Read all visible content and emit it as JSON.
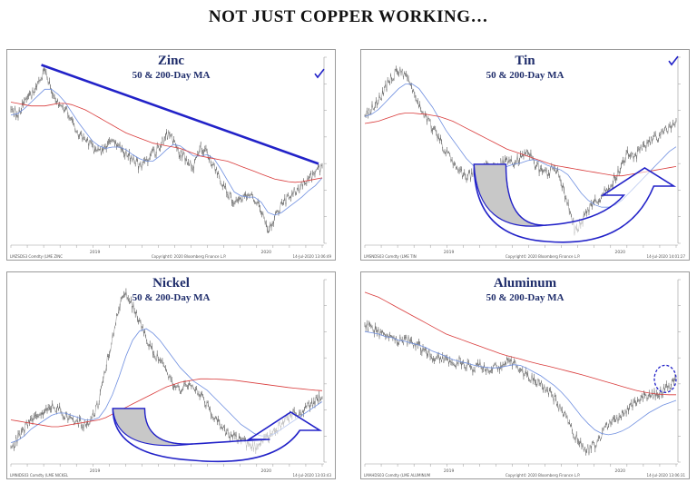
{
  "page": {
    "title": "NOT JUST COPPER WORKING…"
  },
  "colors": {
    "price": "#555555",
    "ma50": "#6f8fe0",
    "ma200": "#d93b3b",
    "annotation": "#2222c8",
    "annotation_fill": "#c8c8c8"
  },
  "charts": [
    {
      "id": "zinc",
      "title": "Zinc",
      "subtitle": "50 & 200-Day MA",
      "footer_left": "LMZSDS3 Comdty (LME ZINC",
      "footer_mid": "Copyright© 2020 Bloomberg Finance L.P.",
      "footer_right": "14-Jul-2020 13:06:49",
      "year_labels": [
        "2019",
        "2020"
      ],
      "annotations": [
        "downtrend-line",
        "checkmark"
      ]
    },
    {
      "id": "tin",
      "title": "Tin",
      "subtitle": "50 & 200-Day MA",
      "footer_left": "LMSNDS03 Comdty (LME TIN",
      "footer_mid": "Copyright© 2020 Bloomberg Finance L.P.",
      "footer_right": "14-Jul-2020 14:01:27",
      "year_labels": [
        "2019",
        "2020"
      ],
      "annotations": [
        "v-recovery-arrow",
        "checkmark"
      ]
    },
    {
      "id": "nickel",
      "title": "Nickel",
      "subtitle": "50 & 200-Day MA",
      "footer_left": "LMNIDS03 Comdty (LME NICKEL",
      "footer_mid": "",
      "footer_right": "14-Jul-2020 13:03:43",
      "year_labels": [
        "2019",
        "2020"
      ],
      "annotations": [
        "v-recovery-arrow"
      ]
    },
    {
      "id": "aluminum",
      "title": "Aluminum",
      "subtitle": "50 & 200-Day MA",
      "footer_left": "LMAHDS03 Comdty (LME ALUMINUM",
      "footer_mid": "Copyright© 2020 Bloomberg Finance L.P.",
      "footer_right": "14-Jul-2020 13:06:31",
      "year_labels": [
        "2019",
        "2020"
      ],
      "annotations": [
        "dashed-circle"
      ]
    }
  ],
  "chart_data": [
    {
      "type": "line",
      "title": "Zinc",
      "subtitle": "50 & 200-Day MA",
      "x_start": "2018-11",
      "x_end": "2020-07",
      "series": [
        {
          "name": "Price",
          "values": [
            2650,
            2600,
            2700,
            2750,
            2850,
            2950,
            2800,
            2700,
            2650,
            2550,
            2450,
            2400,
            2350,
            2300,
            2350,
            2400,
            2350,
            2300,
            2250,
            2200,
            2250,
            2300,
            2350,
            2450,
            2400,
            2300,
            2250,
            2200,
            2350,
            2300,
            2200,
            2100,
            2000,
            1900,
            1950,
            2000,
            1950,
            1850,
            1700,
            1800,
            1900,
            1950,
            2000,
            2050,
            2100,
            2150,
            2200
          ]
        },
        {
          "name": "50-Day MA",
          "values": [
            2600,
            2610,
            2650,
            2700,
            2750,
            2800,
            2800,
            2760,
            2700,
            2620,
            2540,
            2470,
            2400,
            2360,
            2340,
            2350,
            2350,
            2330,
            2290,
            2260,
            2240,
            2240,
            2280,
            2330,
            2370,
            2360,
            2320,
            2280,
            2280,
            2290,
            2260,
            2180,
            2090,
            2000,
            1970,
            1960,
            1960,
            1920,
            1840,
            1820,
            1840,
            1880,
            1920,
            1960,
            2010,
            2050,
            2110
          ]
        },
        {
          "name": "200-Day MA",
          "values": [
            2700,
            2690,
            2680,
            2670,
            2670,
            2670,
            2680,
            2690,
            2690,
            2680,
            2660,
            2640,
            2610,
            2580,
            2550,
            2520,
            2490,
            2460,
            2440,
            2420,
            2400,
            2380,
            2370,
            2360,
            2350,
            2340,
            2320,
            2300,
            2280,
            2270,
            2260,
            2250,
            2240,
            2220,
            2200,
            2180,
            2160,
            2140,
            2120,
            2100,
            2090,
            2080,
            2075,
            2080,
            2090,
            2100,
            2110
          ]
        }
      ]
    },
    {
      "type": "line",
      "title": "Tin",
      "subtitle": "50 & 200-Day MA",
      "x_start": "2018-11",
      "x_end": "2020-07",
      "series": [
        {
          "name": "Price",
          "values": [
            19500,
            19600,
            20000,
            20500,
            21000,
            21300,
            21000,
            20500,
            19800,
            19300,
            18800,
            18300,
            17800,
            17400,
            17000,
            16700,
            16800,
            17000,
            17200,
            17100,
            17300,
            17500,
            17200,
            17600,
            17800,
            17300,
            17000,
            16800,
            17200,
            16500,
            15500,
            14400,
            14700,
            15300,
            15600,
            15900,
            16200,
            16700,
            17200,
            17800,
            17600,
            18000,
            18200,
            18400,
            18600,
            18800,
            19000
          ]
        },
        {
          "name": "50-Day MA",
          "values": [
            19300,
            19400,
            19600,
            19900,
            20200,
            20500,
            20700,
            20700,
            20500,
            20100,
            19700,
            19200,
            18700,
            18300,
            17900,
            17500,
            17200,
            17000,
            16950,
            16980,
            17050,
            17150,
            17250,
            17300,
            17400,
            17450,
            17350,
            17200,
            17100,
            17000,
            16800,
            16400,
            16000,
            15700,
            15500,
            15400,
            15400,
            15500,
            15700,
            16000,
            16300,
            16600,
            16900,
            17200,
            17500,
            17800,
            18000
          ]
        },
        {
          "name": "200-Day MA",
          "values": [
            19000,
            19050,
            19100,
            19200,
            19300,
            19400,
            19450,
            19450,
            19420,
            19400,
            19350,
            19300,
            19200,
            19100,
            18950,
            18800,
            18650,
            18500,
            18350,
            18200,
            18050,
            17900,
            17800,
            17700,
            17600,
            17500,
            17400,
            17300,
            17200,
            17150,
            17100,
            17050,
            17000,
            16950,
            16900,
            16850,
            16800,
            16750,
            16750,
            16800,
            16850,
            16900,
            16950,
            17000,
            17050,
            17100,
            17150
          ]
        }
      ]
    },
    {
      "type": "line",
      "title": "Nickel",
      "subtitle": "50 & 200-Day MA",
      "x_start": "2018-11",
      "x_end": "2020-07",
      "series": [
        {
          "name": "Price",
          "values": [
            10900,
            11400,
            11800,
            12200,
            12300,
            12500,
            12800,
            12700,
            12400,
            12200,
            12100,
            12000,
            12300,
            13000,
            14500,
            15800,
            17200,
            17800,
            17200,
            16500,
            15800,
            15200,
            14800,
            14300,
            13800,
            13500,
            13700,
            13600,
            13300,
            12800,
            12400,
            12000,
            11600,
            11500,
            11300,
            11100,
            11000,
            11200,
            11400,
            11700,
            12000,
            12300,
            12500,
            12600,
            12800,
            13000,
            13300
          ]
        },
        {
          "name": "50-Day MA",
          "values": [
            11200,
            11300,
            11500,
            11800,
            12000,
            12200,
            12400,
            12500,
            12500,
            12400,
            12300,
            12200,
            12200,
            12300,
            12700,
            13300,
            14100,
            15000,
            15700,
            16100,
            16200,
            16000,
            15700,
            15300,
            14900,
            14500,
            14200,
            13900,
            13700,
            13500,
            13200,
            12900,
            12600,
            12300,
            12000,
            11800,
            11600,
            11500,
            11500,
            11600,
            11800,
            12000,
            12200,
            12400,
            12600,
            12800,
            13000
          ]
        },
        {
          "name": "200-Day MA",
          "values": [
            12200,
            12150,
            12100,
            12050,
            12000,
            11950,
            11900,
            11900,
            11950,
            12000,
            12050,
            12100,
            12150,
            12200,
            12300,
            12450,
            12600,
            12750,
            12900,
            13050,
            13200,
            13350,
            13500,
            13650,
            13750,
            13850,
            13900,
            13950,
            14000,
            14000,
            13990,
            13980,
            13960,
            13940,
            13900,
            13860,
            13820,
            13780,
            13740,
            13700,
            13660,
            13620,
            13590,
            13560,
            13530,
            13500,
            13480
          ]
        }
      ]
    },
    {
      "type": "line",
      "title": "Aluminum",
      "subtitle": "50 & 200-Day MA",
      "x_start": "2018-11",
      "x_end": "2020-07",
      "series": [
        {
          "name": "Price",
          "values": [
            1950,
            1930,
            1920,
            1900,
            1910,
            1880,
            1890,
            1870,
            1860,
            1840,
            1820,
            1810,
            1800,
            1790,
            1800,
            1780,
            1770,
            1780,
            1760,
            1770,
            1780,
            1800,
            1790,
            1760,
            1740,
            1720,
            1700,
            1680,
            1650,
            1600,
            1560,
            1500,
            1460,
            1440,
            1460,
            1500,
            1540,
            1560,
            1580,
            1610,
            1630,
            1650,
            1660,
            1670,
            1680,
            1700,
            1720
          ]
        },
        {
          "name": "50-Day MA",
          "values": [
            1920,
            1915,
            1910,
            1900,
            1895,
            1885,
            1880,
            1872,
            1865,
            1855,
            1840,
            1830,
            1818,
            1806,
            1798,
            1792,
            1784,
            1778,
            1774,
            1772,
            1774,
            1780,
            1785,
            1782,
            1770,
            1755,
            1740,
            1720,
            1700,
            1675,
            1645,
            1610,
            1575,
            1545,
            1520,
            1505,
            1500,
            1505,
            1515,
            1530,
            1550,
            1570,
            1590,
            1605,
            1620,
            1630,
            1640
          ]
        },
        {
          "name": "200-Day MA",
          "values": [
            2080,
            2070,
            2060,
            2045,
            2030,
            2015,
            2000,
            1985,
            1970,
            1955,
            1940,
            1925,
            1910,
            1900,
            1890,
            1880,
            1870,
            1860,
            1850,
            1840,
            1830,
            1822,
            1815,
            1808,
            1800,
            1793,
            1786,
            1780,
            1773,
            1766,
            1759,
            1752,
            1745,
            1737,
            1729,
            1721,
            1713,
            1705,
            1697,
            1689,
            1681,
            1675,
            1670,
            1666,
            1664,
            1663,
            1663
          ]
        }
      ]
    }
  ]
}
